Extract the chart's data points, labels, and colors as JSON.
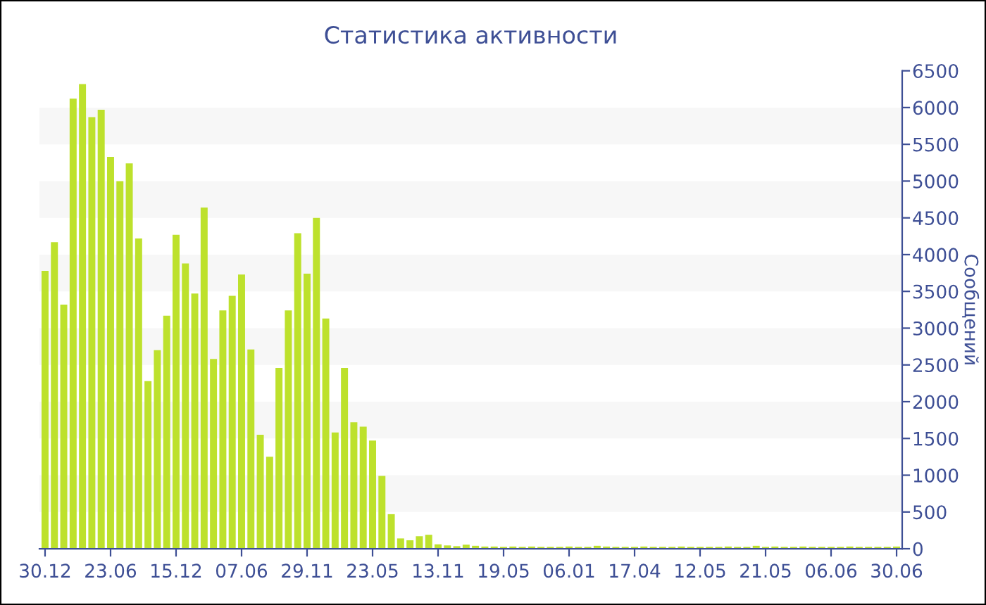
{
  "chart_data": {
    "type": "bar",
    "title": "Статистика активности",
    "ylabel": "Сообщений",
    "categories": [
      "30.12",
      null,
      null,
      null,
      null,
      null,
      null,
      "23.06",
      null,
      null,
      null,
      null,
      null,
      null,
      "15.12",
      null,
      null,
      null,
      null,
      null,
      null,
      "07.06",
      null,
      null,
      null,
      null,
      null,
      null,
      "29.11",
      null,
      null,
      null,
      null,
      null,
      null,
      "23.05",
      null,
      null,
      null,
      null,
      null,
      null,
      "13.11",
      null,
      null,
      null,
      null,
      null,
      null,
      "19.05",
      null,
      null,
      null,
      null,
      null,
      null,
      "06.01",
      null,
      null,
      null,
      null,
      null,
      null,
      "17.04",
      null,
      null,
      null,
      null,
      null,
      null,
      "12.05",
      null,
      null,
      null,
      null,
      null,
      null,
      "21.05",
      null,
      null,
      null,
      null,
      null,
      null,
      "06.06",
      null,
      null,
      null,
      null,
      null,
      null,
      "30.06"
    ],
    "values": [
      3780,
      4170,
      3320,
      6120,
      6320,
      5870,
      5970,
      5330,
      5000,
      5240,
      4220,
      2280,
      2700,
      3170,
      4270,
      3880,
      3470,
      4640,
      2580,
      3240,
      3440,
      3730,
      2710,
      1550,
      1250,
      2460,
      3240,
      4290,
      3740,
      4500,
      3130,
      1580,
      2460,
      1720,
      1660,
      1470,
      990,
      470,
      140,
      115,
      170,
      190,
      60,
      45,
      35,
      55,
      40,
      30,
      30,
      25,
      30,
      25,
      30,
      25,
      25,
      25,
      30,
      25,
      25,
      40,
      30,
      25,
      25,
      25,
      30,
      25,
      25,
      25,
      30,
      25,
      25,
      25,
      25,
      30,
      25,
      25,
      40,
      25,
      30,
      25,
      25,
      30,
      25,
      25,
      25,
      25,
      30,
      25,
      25,
      25,
      25,
      30
    ],
    "color": "#bde12c",
    "ylim": [
      0,
      6500
    ],
    "yticks": [
      0,
      500,
      1000,
      1500,
      2000,
      2500,
      3000,
      3500,
      4000,
      4500,
      5000,
      5500,
      6000,
      6500
    ],
    "bands": [
      {
        "axis": "y",
        "from": 500,
        "to": 1000,
        "color": "#f7f7f7"
      },
      {
        "axis": "y",
        "from": 1500,
        "to": 2000,
        "color": "#f7f7f7"
      },
      {
        "axis": "y",
        "from": 2500,
        "to": 3000,
        "color": "#f7f7f7"
      },
      {
        "axis": "y",
        "from": 3500,
        "to": 4000,
        "color": "#f7f7f7"
      },
      {
        "axis": "y",
        "from": 4500,
        "to": 5000,
        "color": "#f7f7f7"
      },
      {
        "axis": "y",
        "from": 5500,
        "to": 6000,
        "color": "#f7f7f7"
      }
    ],
    "grid": false,
    "legend": false
  }
}
